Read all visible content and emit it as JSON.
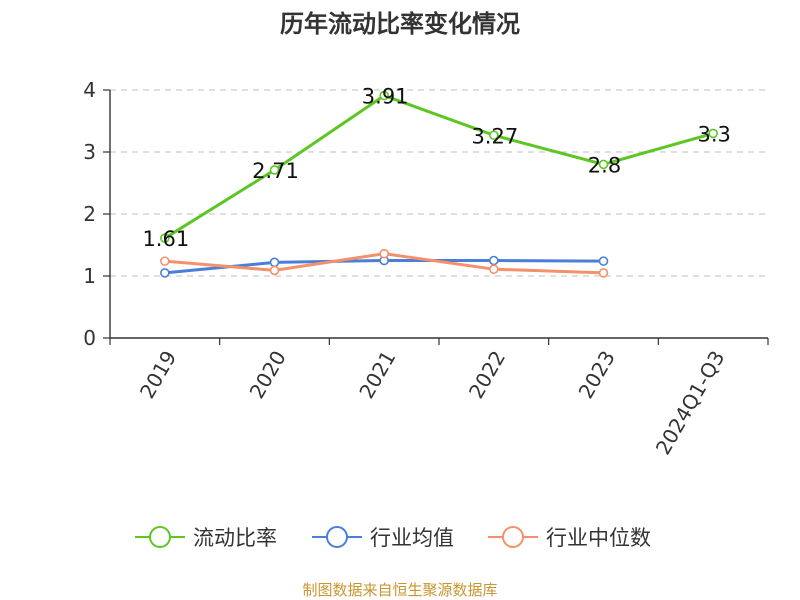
{
  "chart_data": {
    "type": "line",
    "title": "历年流动比率变化情况",
    "categories": [
      "2019",
      "2020",
      "2021",
      "2022",
      "2023",
      "2024Q1-Q3"
    ],
    "ylim": [
      0,
      4
    ],
    "yticks": [
      "0",
      "1",
      "2",
      "3",
      "4"
    ],
    "grid": true,
    "legend_position": "bottom",
    "series": [
      {
        "name": "流动比率",
        "color": "#5cc623",
        "values": [
          1.61,
          2.71,
          3.91,
          3.27,
          2.8,
          3.3
        ],
        "labels": [
          "1.61",
          "2.71",
          "3.91",
          "3.27",
          "2.8",
          "3.3"
        ]
      },
      {
        "name": "行业均值",
        "color": "#4a7ed9",
        "values": [
          1.05,
          1.22,
          1.25,
          1.25,
          1.24,
          null
        ]
      },
      {
        "name": "行业中位数",
        "color": "#f4916a",
        "values": [
          1.24,
          1.09,
          1.36,
          1.11,
          1.05,
          null
        ]
      }
    ]
  },
  "source": "制图数据来自恒生聚源数据库"
}
